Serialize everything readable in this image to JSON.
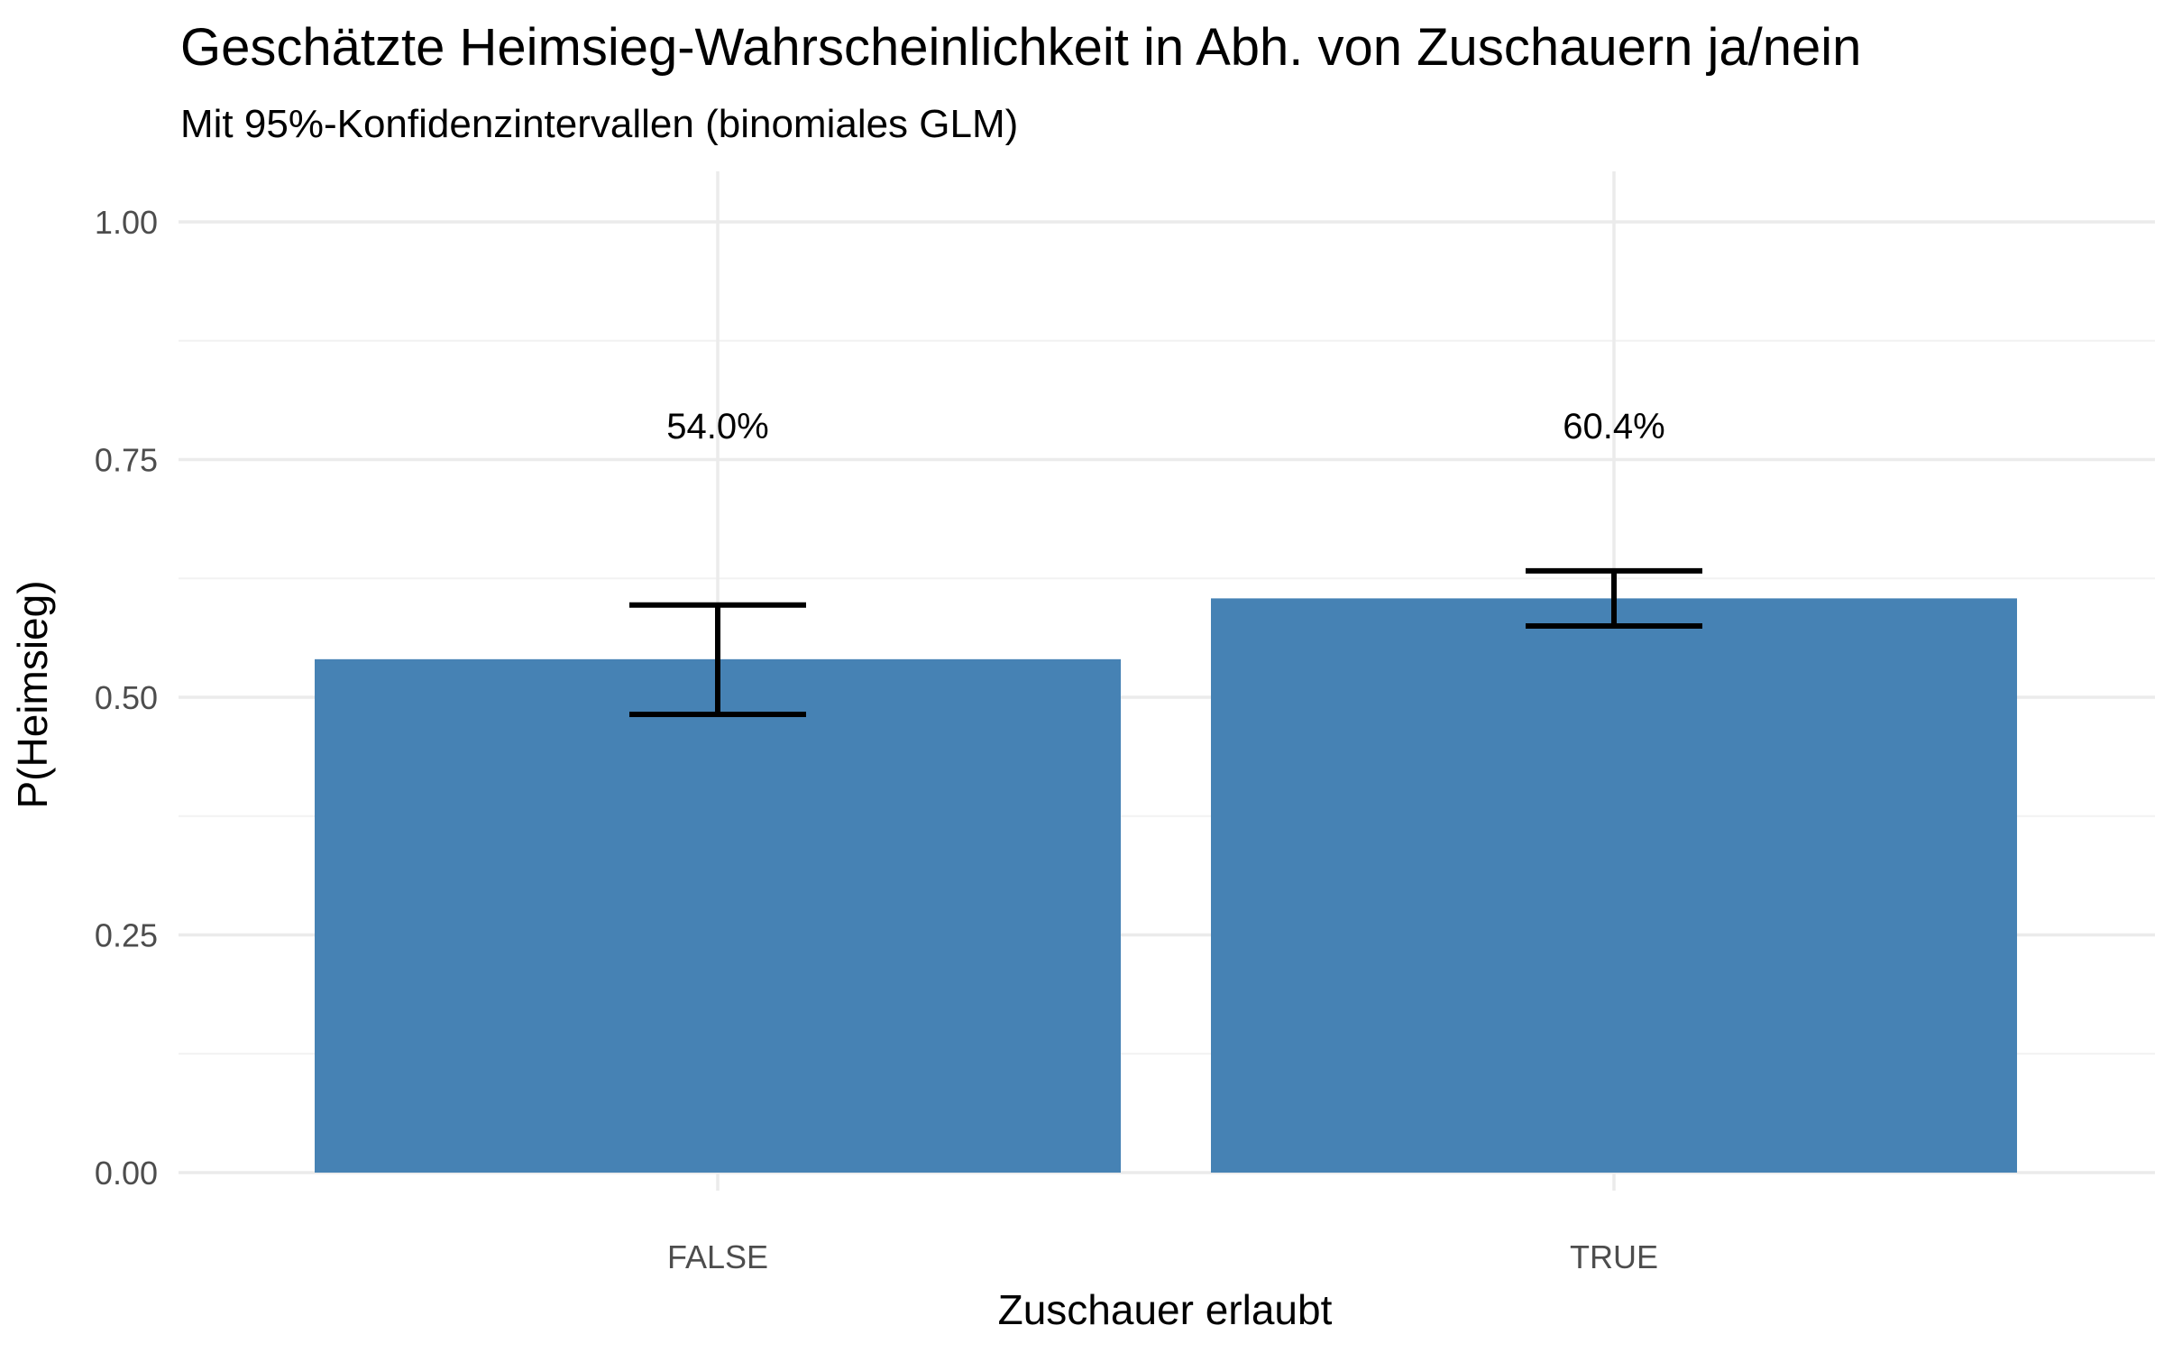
{
  "chart_data": {
    "type": "bar",
    "title": "Geschätzte Heimsieg-Wahrscheinlichkeit in Abh. von Zuschauern ja/nein",
    "subtitle": "Mit 95%-Konfidenzintervallen (binomiales GLM)",
    "xlabel": "Zuschauer erlaubt",
    "ylabel": "P(Heimsieg)",
    "categories": [
      "FALSE",
      "TRUE"
    ],
    "values": [
      0.54,
      0.604
    ],
    "ci_lower": [
      0.482,
      0.575
    ],
    "ci_upper": [
      0.597,
      0.633
    ],
    "data_labels": [
      "54.0%",
      "60.4%"
    ],
    "ylim": [
      0,
      1
    ],
    "yticks": [
      0,
      0.25,
      0.5,
      0.75,
      1.0
    ],
    "ytick_labels": [
      "0.00",
      "0.25",
      "0.50",
      "0.75",
      "1.00"
    ],
    "grid": true,
    "bar_color": "#4682B4",
    "errorbar_color": "#000000"
  }
}
